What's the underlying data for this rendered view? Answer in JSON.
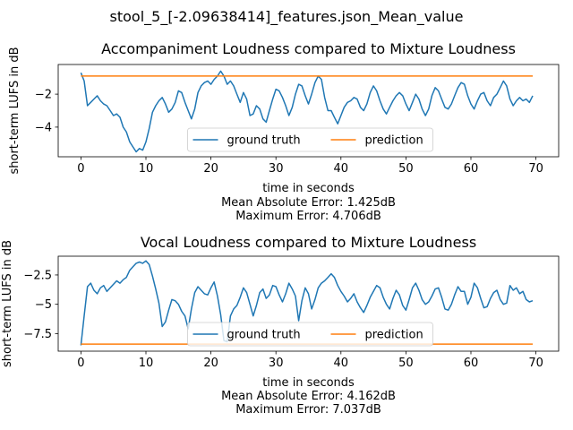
{
  "suptitle": "stool_5_[-2.09638414]_features.json_Mean_value",
  "chart_data": [
    {
      "type": "line",
      "title": "Accompaniment Loudness compared to Mixture Loudness",
      "xlabel": "time in seconds",
      "ylabel": "short-term LUFS in dB",
      "xlim": [
        -3.5,
        73.5
      ],
      "ylim": [
        -5.8,
        -0.2
      ],
      "xticks": [
        0,
        10,
        20,
        30,
        40,
        50,
        60,
        70
      ],
      "yticks": [
        -4,
        -2
      ],
      "legend": "lower-center",
      "grid": false,
      "captions": [
        "Mean Absolute Error: 1.425dB",
        "Maximum Error: 4.706dB"
      ],
      "series": [
        {
          "name": "ground truth",
          "color": "#1f77b4",
          "x": [
            0,
            0.5,
            1,
            1.5,
            2,
            2.5,
            3,
            3.5,
            4,
            4.5,
            5,
            5.5,
            6,
            6.5,
            7,
            7.5,
            8,
            8.5,
            9,
            9.5,
            10,
            10.5,
            11,
            11.5,
            12,
            12.5,
            13,
            13.5,
            14,
            14.5,
            15,
            15.5,
            16,
            16.5,
            17,
            17.5,
            18,
            18.5,
            19,
            19.5,
            20,
            20.5,
            21,
            21.5,
            22,
            22.5,
            23,
            23.5,
            24,
            24.5,
            25,
            25.5,
            26,
            26.5,
            27,
            27.5,
            28,
            28.5,
            29,
            29.5,
            30,
            30.5,
            31,
            31.5,
            32,
            32.5,
            33,
            33.5,
            34,
            34.5,
            35,
            35.5,
            36,
            36.5,
            37,
            37.5,
            38,
            38.5,
            39,
            39.5,
            40,
            40.5,
            41,
            41.5,
            42,
            42.5,
            43,
            43.5,
            44,
            44.5,
            45,
            45.5,
            46,
            46.5,
            47,
            47.5,
            48,
            48.5,
            49,
            49.5,
            50,
            50.5,
            51,
            51.5,
            52,
            52.5,
            53,
            53.5,
            54,
            54.5,
            55,
            55.5,
            56,
            56.5,
            57,
            57.5,
            58,
            58.5,
            59,
            59.5,
            60,
            60.5,
            61,
            61.5,
            62,
            62.5,
            63,
            63.5,
            64,
            64.5,
            65,
            65.5,
            66,
            66.5,
            67,
            67.5,
            68,
            68.5,
            69,
            69.5
          ],
          "y": [
            -0.7,
            -1.2,
            -2.7,
            -2.5,
            -2.3,
            -2.1,
            -2.4,
            -2.6,
            -2.7,
            -3.0,
            -3.3,
            -3.2,
            -3.4,
            -4.0,
            -4.3,
            -4.9,
            -5.2,
            -5.5,
            -5.3,
            -5.4,
            -4.9,
            -4.1,
            -3.1,
            -2.7,
            -2.4,
            -2.2,
            -2.6,
            -3.1,
            -2.9,
            -2.5,
            -1.8,
            -1.9,
            -2.5,
            -3.0,
            -3.5,
            -2.9,
            -1.9,
            -1.5,
            -1.3,
            -1.2,
            -1.4,
            -1.1,
            -0.9,
            -0.6,
            -0.9,
            -1.4,
            -1.2,
            -1.5,
            -2.0,
            -2.5,
            -1.9,
            -2.3,
            -3.3,
            -3.2,
            -2.7,
            -2.9,
            -3.5,
            -3.7,
            -3.0,
            -2.3,
            -1.7,
            -1.8,
            -2.2,
            -2.7,
            -3.3,
            -2.8,
            -2.0,
            -1.4,
            -1.5,
            -2.1,
            -2.6,
            -2.0,
            -1.3,
            -0.9,
            -1.1,
            -2.2,
            -3.0,
            -3.0,
            -3.4,
            -3.8,
            -3.3,
            -2.8,
            -2.5,
            -2.4,
            -2.2,
            -2.3,
            -2.8,
            -3.0,
            -2.6,
            -1.9,
            -1.5,
            -1.8,
            -2.4,
            -2.9,
            -3.2,
            -2.8,
            -2.4,
            -2.1,
            -1.9,
            -2.1,
            -2.6,
            -3.0,
            -2.5,
            -2.0,
            -2.3,
            -2.9,
            -3.3,
            -2.9,
            -2.1,
            -1.6,
            -1.8,
            -2.3,
            -2.8,
            -2.9,
            -2.6,
            -2.1,
            -1.6,
            -1.3,
            -1.4,
            -2.1,
            -2.6,
            -2.9,
            -2.4,
            -2.0,
            -1.9,
            -2.4,
            -2.7,
            -2.2,
            -2.0,
            -1.6,
            -1.2,
            -1.5,
            -2.3,
            -2.7,
            -2.4,
            -2.2,
            -2.4,
            -2.3,
            -2.5,
            -2.1
          ]
        },
        {
          "name": "prediction",
          "color": "#ff7f0e",
          "x": [
            0,
            69.5
          ],
          "y": [
            -0.9,
            -0.9
          ]
        }
      ]
    },
    {
      "type": "line",
      "title": "Vocal Loudness compared to Mixture Loudness",
      "xlabel": "time in seconds",
      "ylabel": "short-term LUFS in dB",
      "xlim": [
        -3.5,
        73.5
      ],
      "ylim": [
        -9.0,
        -0.9
      ],
      "xticks": [
        0,
        10,
        20,
        30,
        40,
        50,
        60,
        70
      ],
      "yticks": [
        -7.5,
        -5.0,
        -2.5
      ],
      "legend": "lower-center",
      "grid": false,
      "captions": [
        "Mean Absolute Error: 4.162dB",
        "Maximum Error: 7.037dB"
      ],
      "series": [
        {
          "name": "ground truth",
          "color": "#1f77b4",
          "x": [
            0,
            0.5,
            1,
            1.5,
            2,
            2.5,
            3,
            3.5,
            4,
            4.5,
            5,
            5.5,
            6,
            6.5,
            7,
            7.5,
            8,
            8.5,
            9,
            9.5,
            10,
            10.5,
            11,
            11.5,
            12,
            12.5,
            13,
            13.5,
            14,
            14.5,
            15,
            15.5,
            16,
            16.5,
            17,
            17.5,
            18,
            18.5,
            19,
            19.5,
            20,
            20.5,
            21,
            21.5,
            22,
            22.5,
            23,
            23.5,
            24,
            24.5,
            25,
            25.5,
            26,
            26.5,
            27,
            27.5,
            28,
            28.5,
            29,
            29.5,
            30,
            30.5,
            31,
            31.5,
            32,
            32.5,
            33,
            33.5,
            34,
            34.5,
            35,
            35.5,
            36,
            36.5,
            37,
            37.5,
            38,
            38.5,
            39,
            39.5,
            40,
            40.5,
            41,
            41.5,
            42,
            42.5,
            43,
            43.5,
            44,
            44.5,
            45,
            45.5,
            46,
            46.5,
            47,
            47.5,
            48,
            48.5,
            49,
            49.5,
            50,
            50.5,
            51,
            51.5,
            52,
            52.5,
            53,
            53.5,
            54,
            54.5,
            55,
            55.5,
            56,
            56.5,
            57,
            57.5,
            58,
            58.5,
            59,
            59.5,
            60,
            60.5,
            61,
            61.5,
            62,
            62.5,
            63,
            63.5,
            64,
            64.5,
            65,
            65.5,
            66,
            66.5,
            67,
            67.5,
            68,
            68.5,
            69,
            69.5
          ],
          "y": [
            -8.5,
            -6.0,
            -3.5,
            -3.2,
            -3.8,
            -4.1,
            -3.6,
            -3.4,
            -3.9,
            -3.6,
            -3.3,
            -3.0,
            -3.2,
            -2.9,
            -2.7,
            -2.1,
            -1.8,
            -1.5,
            -1.4,
            -1.5,
            -1.3,
            -1.6,
            -2.6,
            -3.7,
            -4.9,
            -6.9,
            -6.5,
            -5.5,
            -4.6,
            -4.7,
            -5.0,
            -5.6,
            -6.0,
            -7.1,
            -5.4,
            -4.0,
            -3.5,
            -3.8,
            -4.1,
            -4.2,
            -3.6,
            -3.1,
            -4.3,
            -5.9,
            -8.1,
            -8.2,
            -6.0,
            -5.4,
            -5.1,
            -4.4,
            -3.6,
            -4.0,
            -5.0,
            -6.0,
            -5.1,
            -4.0,
            -3.7,
            -4.5,
            -4.2,
            -3.4,
            -3.5,
            -4.2,
            -4.8,
            -4.1,
            -3.2,
            -3.7,
            -4.3,
            -6.4,
            -4.7,
            -3.6,
            -4.1,
            -5.4,
            -4.6,
            -3.6,
            -3.2,
            -3.0,
            -2.7,
            -2.4,
            -2.7,
            -3.4,
            -3.9,
            -4.3,
            -4.8,
            -4.5,
            -4.1,
            -4.8,
            -5.3,
            -5.7,
            -5.1,
            -4.4,
            -3.9,
            -3.4,
            -3.6,
            -4.4,
            -5.0,
            -5.4,
            -4.5,
            -3.8,
            -4.2,
            -5.1,
            -5.5,
            -4.6,
            -3.6,
            -3.2,
            -3.8,
            -4.6,
            -5.0,
            -4.8,
            -4.3,
            -3.7,
            -3.6,
            -4.4,
            -5.4,
            -5.5,
            -5.0,
            -4.2,
            -3.5,
            -3.9,
            -3.9,
            -5.0,
            -4.4,
            -3.2,
            -3.6,
            -4.5,
            -5.3,
            -5.2,
            -4.5,
            -4.0,
            -3.8,
            -4.6,
            -5.0,
            -4.9,
            -3.4,
            -3.8,
            -3.6,
            -4.1,
            -3.9,
            -4.6,
            -4.8,
            -4.7
          ]
        },
        {
          "name": "prediction",
          "color": "#ff7f0e",
          "x": [
            0,
            69.5
          ],
          "y": [
            -8.4,
            -8.4
          ]
        }
      ]
    }
  ]
}
